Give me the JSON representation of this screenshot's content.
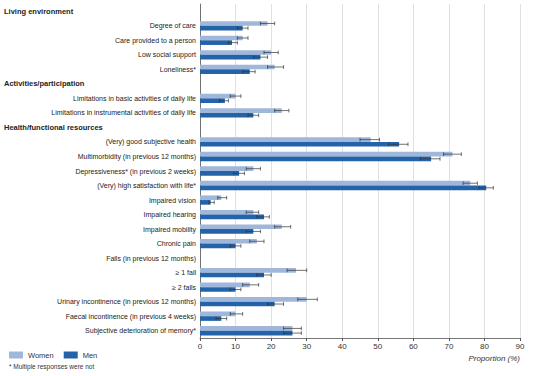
{
  "chart_data": {
    "type": "bar",
    "orientation": "horizontal",
    "categories": [
      "Living environment",
      "Degree of care",
      "Care provided to a person",
      "Low social support",
      "Loneliness*",
      "Activities/participation",
      "Limitations in basic activities of daily life",
      "Limitations in instrumental activities of daily life",
      "Health/functional resources",
      "(Very) good subjective health",
      "Multimorbidity (in previous 12 months)",
      "Depressiveness* (in previous 2 weeks)",
      "(Very) high satisfaction with life*",
      "Impaired vision",
      "Impaired hearing",
      "Impaired mobility",
      "Chronic pain",
      "Falls (in previous 12 months)",
      "≥ 1 fall",
      "≥ 2 falls",
      "Urinary incontinence (in previous 12 months)",
      "Faecal incontinence (in previous 4 weeks)",
      "Subjective deterioration of memory*"
    ],
    "section_headers": [
      "Living environment",
      "Activities/participation",
      "Health/functional resources"
    ],
    "series": [
      {
        "name": "Women",
        "color": "#a0b7dc",
        "values": [
          null,
          19,
          12,
          20,
          21,
          null,
          10,
          23,
          null,
          48,
          71,
          15,
          76,
          6,
          15,
          23,
          16,
          null,
          27,
          14,
          30,
          10,
          26
        ],
        "ci_low": [
          null,
          17,
          10.5,
          18,
          19,
          null,
          8.5,
          21,
          null,
          45,
          68.5,
          13,
          74,
          5,
          13,
          21,
          14,
          null,
          24.5,
          12,
          27.5,
          8.5,
          23.5
        ],
        "ci_high": [
          null,
          21,
          13.5,
          22,
          23.5,
          null,
          11.5,
          25,
          null,
          50.5,
          73.5,
          17,
          78,
          7.5,
          16.5,
          25.5,
          18,
          null,
          30,
          16.5,
          33,
          12,
          28.5
        ]
      },
      {
        "name": "Men",
        "color": "#2563a8",
        "values": [
          null,
          12,
          9,
          17,
          14,
          null,
          7,
          15,
          null,
          56,
          65,
          11,
          80.5,
          3,
          18,
          15,
          10,
          null,
          18,
          10,
          21,
          6,
          26
        ],
        "ci_low": [
          null,
          10.5,
          8,
          15,
          12,
          null,
          5.5,
          13.5,
          null,
          53,
          62,
          9.5,
          78.5,
          2.5,
          16,
          13,
          8.5,
          null,
          16,
          8.5,
          19,
          4.5,
          23.5
        ],
        "ci_high": [
          null,
          13.5,
          10.5,
          19,
          15.5,
          null,
          8,
          16.5,
          null,
          58.5,
          67.5,
          12.5,
          82.5,
          4,
          19.5,
          17,
          11.5,
          null,
          20,
          11.5,
          23.5,
          7.5,
          28.5
        ]
      }
    ],
    "xlabel": "Proportion (%)",
    "xlim": [
      0,
      90
    ],
    "xticks": [
      0,
      10,
      20,
      30,
      40,
      50,
      60,
      70,
      80,
      90
    ],
    "grid": true,
    "legend": "lower left",
    "footnote": "* Multiple responses were not"
  }
}
